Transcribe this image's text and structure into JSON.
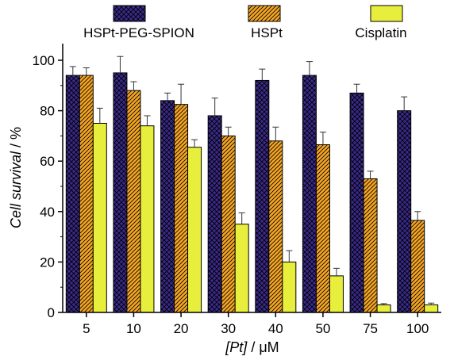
{
  "chart_data": {
    "type": "bar",
    "categories": [
      "5",
      "10",
      "20",
      "30",
      "40",
      "50",
      "75",
      "100"
    ],
    "series": [
      {
        "name": "HSPt-PEG-SPION",
        "color": "#3b2a8c",
        "pattern": "crosshatch",
        "values": [
          94,
          95,
          84,
          78,
          92,
          94,
          87,
          80
        ],
        "errors": [
          3.5,
          6.5,
          3,
          7,
          4.5,
          5.5,
          3.5,
          5.5
        ]
      },
      {
        "name": "HSPt",
        "color": "#f5a623",
        "pattern": "diagonal",
        "values": [
          94,
          88,
          82.5,
          70,
          68,
          66.5,
          53,
          36.5
        ],
        "errors": [
          3,
          3.5,
          8,
          3.5,
          5.5,
          5,
          3,
          3.5
        ]
      },
      {
        "name": "Cisplatin",
        "color": "#e8ee3c",
        "pattern": "solid",
        "values": [
          75,
          74,
          65.5,
          35,
          20,
          14.5,
          3,
          3
        ],
        "errors": [
          6,
          4,
          3,
          4.5,
          4.5,
          3,
          0.5,
          0.7
        ]
      }
    ],
    "xlabel": {
      "italic": "[Pt]",
      "rest": " / μM"
    },
    "ylabel": {
      "italic": "Cell survival",
      "rest": " / %"
    },
    "ylim": [
      0,
      100
    ],
    "yticks": [
      "0",
      "20",
      "40",
      "60",
      "80",
      "100"
    ],
    "legend_position": "top",
    "grid": false
  }
}
